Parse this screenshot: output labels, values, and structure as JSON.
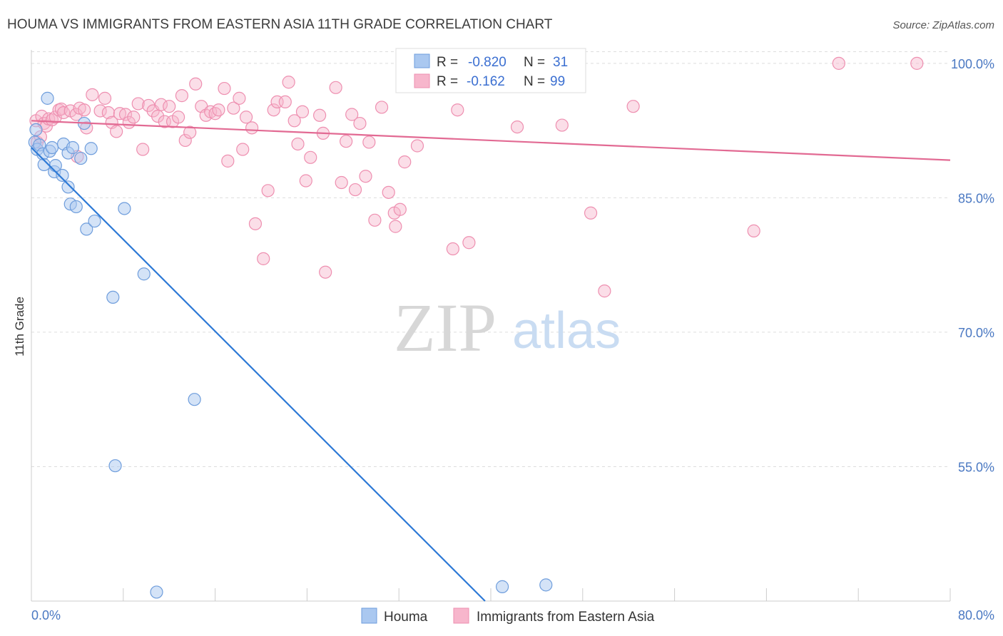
{
  "title": "HOUMA VS IMMIGRANTS FROM EASTERN ASIA 11TH GRADE CORRELATION CHART",
  "source": "Source: ZipAtlas.com",
  "watermark": {
    "zip": "ZIP",
    "atlas": "atlas"
  },
  "legend": {
    "series": [
      {
        "r_label": "R =",
        "r_value": "-0.820",
        "n_label": "N =",
        "n_value": "31"
      },
      {
        "r_label": "R =",
        "r_value": "-0.162",
        "n_label": "N =",
        "n_value": "99"
      }
    ]
  },
  "bottom_legend": [
    "Houma",
    "Immigrants from Eastern Asia"
  ],
  "colors": {
    "houma_fill": "#aac8f0",
    "houma_stroke": "#6e9ddc",
    "houma_line": "#2e7ad6",
    "asia_fill": "#f7b6cc",
    "asia_stroke": "#ee8fb0",
    "asia_line": "#e26a93",
    "tick_text": "#4a78c2",
    "grid": "#dddddd"
  },
  "chart_data": {
    "type": "scatter",
    "title": "HOUMA VS IMMIGRANTS FROM EASTERN ASIA 11TH GRADE CORRELATION CHART",
    "xlabel": "",
    "ylabel": "11th Grade",
    "xlim": [
      0,
      80
    ],
    "ylim": [
      40,
      101.5
    ],
    "x_tick_labels": [
      "0.0%",
      "80.0%"
    ],
    "y_ticks": [
      100,
      85,
      70,
      55
    ],
    "y_tick_labels": [
      "100.0%",
      "85.0%",
      "70.0%",
      "55.0%"
    ],
    "grid": true,
    "legend_position": "top-center",
    "series": [
      {
        "name": "Houma",
        "r": -0.82,
        "n": 31,
        "trend": {
          "x": [
            0,
            39.5
          ],
          "y": [
            90.6,
            40
          ]
        },
        "points": [
          [
            0.3,
            91.2
          ],
          [
            0.4,
            92.6
          ],
          [
            0.5,
            90.4
          ],
          [
            0.7,
            90.9
          ],
          [
            1.0,
            89.9
          ],
          [
            1.1,
            88.7
          ],
          [
            1.4,
            96.1
          ],
          [
            1.6,
            90.2
          ],
          [
            1.8,
            90.6
          ],
          [
            2.0,
            87.9
          ],
          [
            2.1,
            88.6
          ],
          [
            2.7,
            87.5
          ],
          [
            2.8,
            91.0
          ],
          [
            3.2,
            90.0
          ],
          [
            3.2,
            86.2
          ],
          [
            3.4,
            84.3
          ],
          [
            3.6,
            90.6
          ],
          [
            3.9,
            84.0
          ],
          [
            4.3,
            89.4
          ],
          [
            4.6,
            93.3
          ],
          [
            4.8,
            81.5
          ],
          [
            5.2,
            90.5
          ],
          [
            5.5,
            82.4
          ],
          [
            7.1,
            73.9
          ],
          [
            7.3,
            55.1
          ],
          [
            8.1,
            83.8
          ],
          [
            9.8,
            76.5
          ],
          [
            10.9,
            41.0
          ],
          [
            14.2,
            62.5
          ],
          [
            41.0,
            41.6
          ],
          [
            44.8,
            41.8
          ]
        ]
      },
      {
        "name": "Immigrants from Eastern Asia",
        "r": -0.162,
        "n": 99,
        "trend": {
          "x": [
            0,
            80
          ],
          "y": [
            93.6,
            89.2
          ]
        },
        "points": [
          [
            0.4,
            93.6
          ],
          [
            0.5,
            91.2
          ],
          [
            0.8,
            91.8
          ],
          [
            0.9,
            94.1
          ],
          [
            1.1,
            93.3
          ],
          [
            1.3,
            93.0
          ],
          [
            1.5,
            93.8
          ],
          [
            1.8,
            93.7
          ],
          [
            2.1,
            94.0
          ],
          [
            2.4,
            94.8
          ],
          [
            2.6,
            94.9
          ],
          [
            2.8,
            94.5
          ],
          [
            3.4,
            94.7
          ],
          [
            3.9,
            94.3
          ],
          [
            4.0,
            89.6
          ],
          [
            4.2,
            95.0
          ],
          [
            4.6,
            94.8
          ],
          [
            4.8,
            92.8
          ],
          [
            5.3,
            96.5
          ],
          [
            6.0,
            94.7
          ],
          [
            6.4,
            96.1
          ],
          [
            6.7,
            94.5
          ],
          [
            7.0,
            93.4
          ],
          [
            7.4,
            92.4
          ],
          [
            7.7,
            94.4
          ],
          [
            8.2,
            94.3
          ],
          [
            8.5,
            93.4
          ],
          [
            8.9,
            94.0
          ],
          [
            9.3,
            95.5
          ],
          [
            9.7,
            90.4
          ],
          [
            10.2,
            95.3
          ],
          [
            10.6,
            94.7
          ],
          [
            11.0,
            94.1
          ],
          [
            11.3,
            95.4
          ],
          [
            11.6,
            93.5
          ],
          [
            12.0,
            95.2
          ],
          [
            12.3,
            93.5
          ],
          [
            12.8,
            94.0
          ],
          [
            13.1,
            96.4
          ],
          [
            13.4,
            91.4
          ],
          [
            13.8,
            92.3
          ],
          [
            14.3,
            97.7
          ],
          [
            14.8,
            95.2
          ],
          [
            15.2,
            94.2
          ],
          [
            15.6,
            94.6
          ],
          [
            16.0,
            94.4
          ],
          [
            16.3,
            94.8
          ],
          [
            16.8,
            97.2
          ],
          [
            17.1,
            89.1
          ],
          [
            17.6,
            95.0
          ],
          [
            18.1,
            96.1
          ],
          [
            18.4,
            90.4
          ],
          [
            18.7,
            94.0
          ],
          [
            19.2,
            92.8
          ],
          [
            19.5,
            82.1
          ],
          [
            20.2,
            78.2
          ],
          [
            20.6,
            85.8
          ],
          [
            21.1,
            94.8
          ],
          [
            21.4,
            95.7
          ],
          [
            22.1,
            95.7
          ],
          [
            22.4,
            97.9
          ],
          [
            22.9,
            93.6
          ],
          [
            23.2,
            91.0
          ],
          [
            23.6,
            94.6
          ],
          [
            23.9,
            86.9
          ],
          [
            24.3,
            89.5
          ],
          [
            25.1,
            94.2
          ],
          [
            25.4,
            92.2
          ],
          [
            25.6,
            76.7
          ],
          [
            26.5,
            97.3
          ],
          [
            27.0,
            86.7
          ],
          [
            27.4,
            91.3
          ],
          [
            27.9,
            94.3
          ],
          [
            28.2,
            85.9
          ],
          [
            28.6,
            93.3
          ],
          [
            29.1,
            87.4
          ],
          [
            29.4,
            91.2
          ],
          [
            29.9,
            82.5
          ],
          [
            30.5,
            95.1
          ],
          [
            31.1,
            85.6
          ],
          [
            31.6,
            83.3
          ],
          [
            31.7,
            81.8
          ],
          [
            32.1,
            83.7
          ],
          [
            32.5,
            89.0
          ],
          [
            33.6,
            90.8
          ],
          [
            36.7,
            79.3
          ],
          [
            37.1,
            94.8
          ],
          [
            38.1,
            80.0
          ],
          [
            38.4,
            100.0
          ],
          [
            42.3,
            92.9
          ],
          [
            43.3,
            100.0
          ],
          [
            46.2,
            93.1
          ],
          [
            48.7,
            83.3
          ],
          [
            49.9,
            74.6
          ],
          [
            52.4,
            95.2
          ],
          [
            62.9,
            81.3
          ],
          [
            70.3,
            100.0
          ],
          [
            77.1,
            100.0
          ]
        ]
      }
    ]
  }
}
